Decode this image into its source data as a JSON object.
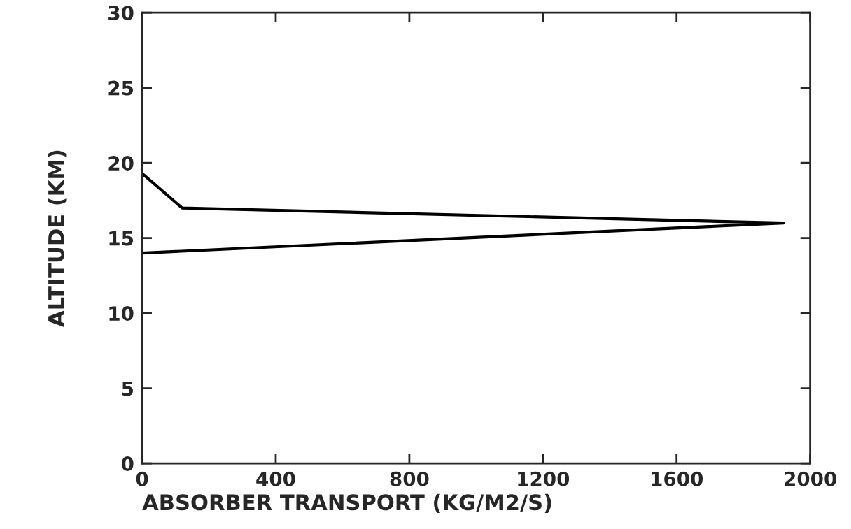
{
  "chart_data": {
    "type": "line",
    "xlabel": "ABSORBER TRANSPORT (KG/M2/S)",
    "ylabel": "ALTITUDE (KM)",
    "series": [
      {
        "color": "#000000",
        "x": [
          0,
          120,
          1920,
          0
        ],
        "values": [
          19.3,
          17.0,
          16.0,
          14.0
        ]
      }
    ],
    "xlim": [
      0,
      2000
    ],
    "ylim": [
      0,
      30
    ],
    "xticks": [
      0,
      400,
      800,
      1200,
      1600,
      2000
    ],
    "yticks": [
      0,
      5,
      10,
      15,
      20,
      25,
      30
    ],
    "grid": false,
    "legend": false,
    "marker": "none",
    "line_style": "solid"
  }
}
